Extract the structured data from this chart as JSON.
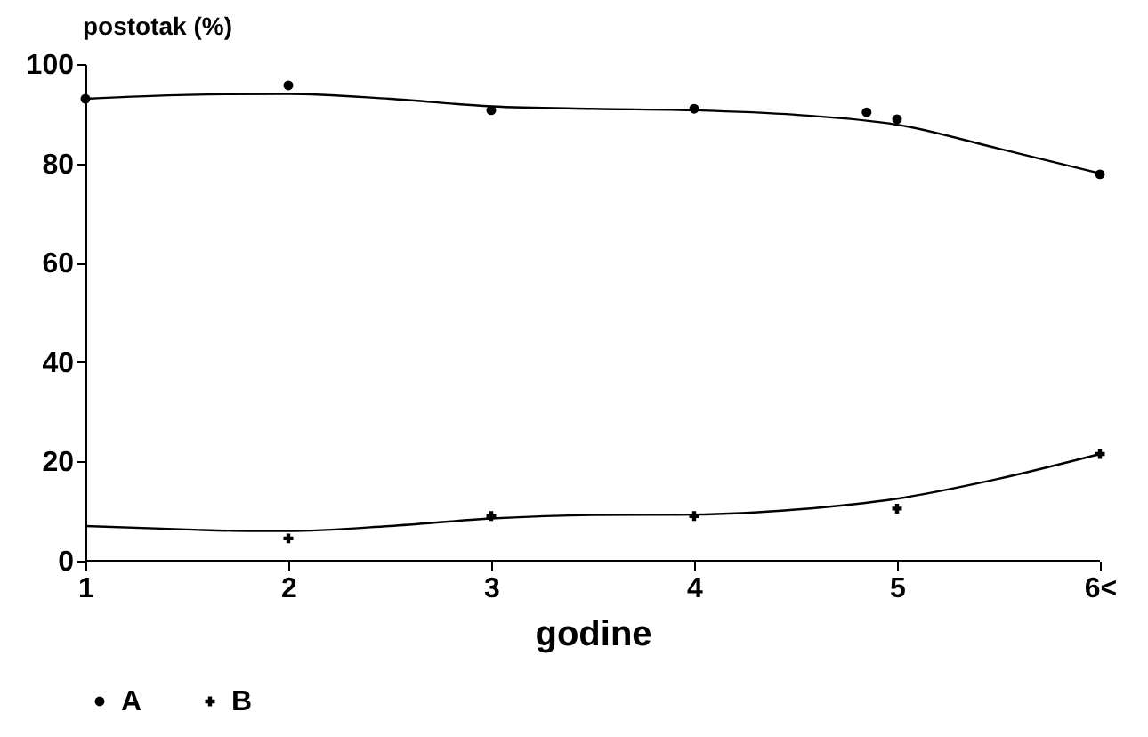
{
  "chart_data": {
    "type": "line",
    "xlabel": "godine",
    "ylabel": "postotak (%)",
    "xlim": [
      1,
      6
    ],
    "xticks": [
      1,
      2,
      3,
      4,
      5,
      {
        "value": 6,
        "label": "6<"
      }
    ],
    "ylim": [
      0,
      100
    ],
    "yticks": [
      0,
      20,
      40,
      60,
      80,
      100
    ],
    "grid": false,
    "legend": "bottom",
    "series": [
      {
        "type": "scatter",
        "name": "A",
        "color": "#000000",
        "marker": "circle",
        "x": [
          1,
          2,
          3,
          4,
          4.85,
          5,
          6
        ],
        "values": [
          93,
          95.7,
          90.7,
          91,
          90.3,
          88.9,
          77.8
        ]
      },
      {
        "color": "#000000",
        "x": [
          1,
          1.5,
          2,
          2.5,
          3,
          3.5,
          4,
          4.5,
          5,
          5.5,
          6
        ],
        "values": [
          93,
          93.8,
          94,
          93,
          91.5,
          91,
          90.7,
          89.8,
          87.8,
          83,
          78
        ]
      },
      {
        "type": "scatter",
        "name": "B",
        "color": "#000000",
        "marker": "cross",
        "x": [
          2,
          3,
          4,
          5,
          6
        ],
        "values": [
          4.5,
          9,
          9,
          10.5,
          21.5
        ]
      },
      {
        "color": "#000000",
        "x": [
          1,
          1.5,
          1.8,
          2,
          2.5,
          3,
          3.5,
          4,
          4.5,
          5,
          5.5,
          6
        ],
        "values": [
          7,
          6.3,
          6,
          6,
          7,
          8.5,
          9.2,
          9.3,
          10.3,
          12.5,
          16.5,
          21.5
        ]
      }
    ]
  }
}
